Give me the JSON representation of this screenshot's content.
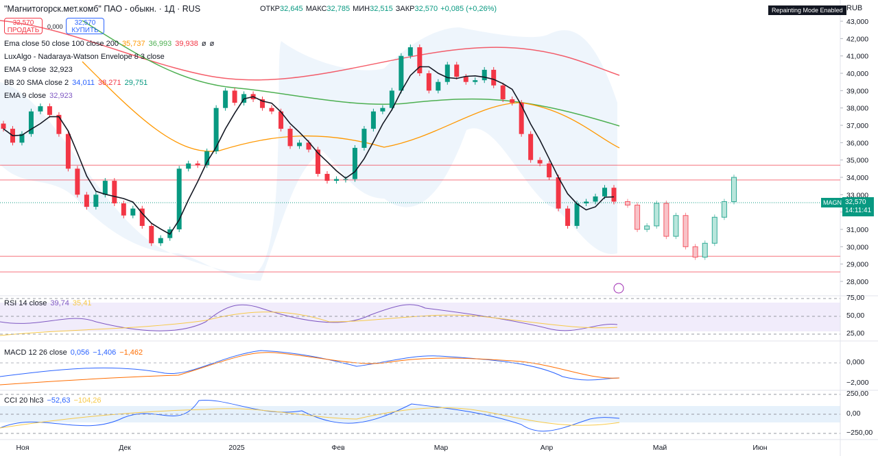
{
  "header": {
    "symbol": "\"Магнитогорск.мет.комб\" ПАО - обыкн. · 1Д · RUS",
    "ohlc": [
      {
        "label": "ОТКР",
        "value": "32,645"
      },
      {
        "label": "МАКС",
        "value": "32,785"
      },
      {
        "label": "МИН",
        "value": "32,515"
      },
      {
        "label": "ЗАКР",
        "value": "32,570"
      }
    ],
    "change": "+0,085 (+0,26%)",
    "badge": "Repainting Mode Enabled",
    "currency": "RUB"
  },
  "trade": {
    "sell_price": "32,570",
    "sell": "ПРОДАТЬ",
    "spread": "0,000",
    "buy_price": "32,570",
    "buy": "КУПИТЬ"
  },
  "legends": [
    {
      "name": "Ema close 50 close 100 close 200",
      "values": [
        "35,737",
        "36,993",
        "39,938",
        "ø",
        "ø"
      ]
    },
    {
      "name": "LuxAlgo - Nadaraya-Watson Envelope 8 3 close",
      "values": []
    },
    {
      "name": "EMA 9 close",
      "values": [
        "32,923"
      ]
    },
    {
      "name": "BB 20 SMA close 2",
      "values": [
        "34,011",
        "38,271",
        "29,751"
      ]
    },
    {
      "name": "EMA 9 close",
      "values": [
        "32,923"
      ]
    }
  ],
  "panes": [
    {
      "name": "RSI 14 close",
      "values": [
        "39,74",
        "35,41"
      ],
      "ticks": [
        "75,00",
        "50,00",
        "25,00"
      ]
    },
    {
      "name": "MACD 12 26 close",
      "values": [
        "0,056",
        "−1,406",
        "−1,462"
      ],
      "ticks": [
        "0,000",
        "−2,000"
      ]
    },
    {
      "name": "CCI 20 hlc3",
      "values": [
        "−52,63",
        "−104,26"
      ],
      "ticks": [
        "250,00",
        "0,00",
        "−250,00"
      ]
    }
  ],
  "price_label": {
    "ticker": "MAGN",
    "price": "32,570",
    "time": "14:11:41"
  },
  "time_axis": [
    "Ноя",
    "Дек",
    "2025",
    "Фев",
    "Мар",
    "Апр",
    "Май",
    "Июн"
  ],
  "chart": {
    "ylim": [
      27250,
      44225
    ],
    "yticks": [
      {
        "value": 43000,
        "label": "43,000"
      },
      {
        "value": 42000,
        "label": "42,000"
      },
      {
        "value": 41000,
        "label": "41,000"
      },
      {
        "value": 40000,
        "label": "40,000"
      },
      {
        "value": 39000,
        "label": "39,000"
      },
      {
        "value": 38000,
        "label": "38,000"
      },
      {
        "value": 37000,
        "label": "37,000"
      },
      {
        "value": 36000,
        "label": "36,000"
      },
      {
        "value": 35000,
        "label": "35,000"
      },
      {
        "value": 34000,
        "label": "34,000"
      },
      {
        "value": 33000,
        "label": "33,000"
      },
      {
        "value": 32000,
        "label": "32,000"
      },
      {
        "value": 31000,
        "label": "31,000"
      },
      {
        "value": 30000,
        "label": "30,000"
      },
      {
        "value": 29000,
        "label": "29,000"
      },
      {
        "value": 28000,
        "label": "28,000"
      }
    ],
    "levels": [
      34700,
      33850,
      29450,
      28550
    ],
    "closes": [
      36800,
      36000,
      36500,
      37800,
      38100,
      37600,
      36500,
      34500,
      33000,
      32300,
      33000,
      33800,
      32500,
      31800,
      32200,
      31200,
      30200,
      30500,
      31000,
      34500,
      34800,
      34700,
      35500,
      38000,
      39000,
      38300,
      38800,
      38500,
      38000,
      37800,
      36800,
      35800,
      36000,
      35600,
      34200,
      33800,
      33900,
      33900,
      35700,
      36800,
      37800,
      38000,
      39000,
      41000,
      41500,
      40000,
      39000,
      39500,
      40500,
      39800,
      39500,
      39600,
      40200,
      39300,
      38500,
      38300,
      36500,
      35000,
      34800,
      34000,
      32200,
      31200,
      32500,
      32600,
      32900,
      33400,
      32600
    ],
    "projection": [
      32400,
      31000,
      31200,
      32500,
      30600,
      31800,
      30000,
      29400,
      30200,
      31700,
      32600,
      34000
    ]
  }
}
